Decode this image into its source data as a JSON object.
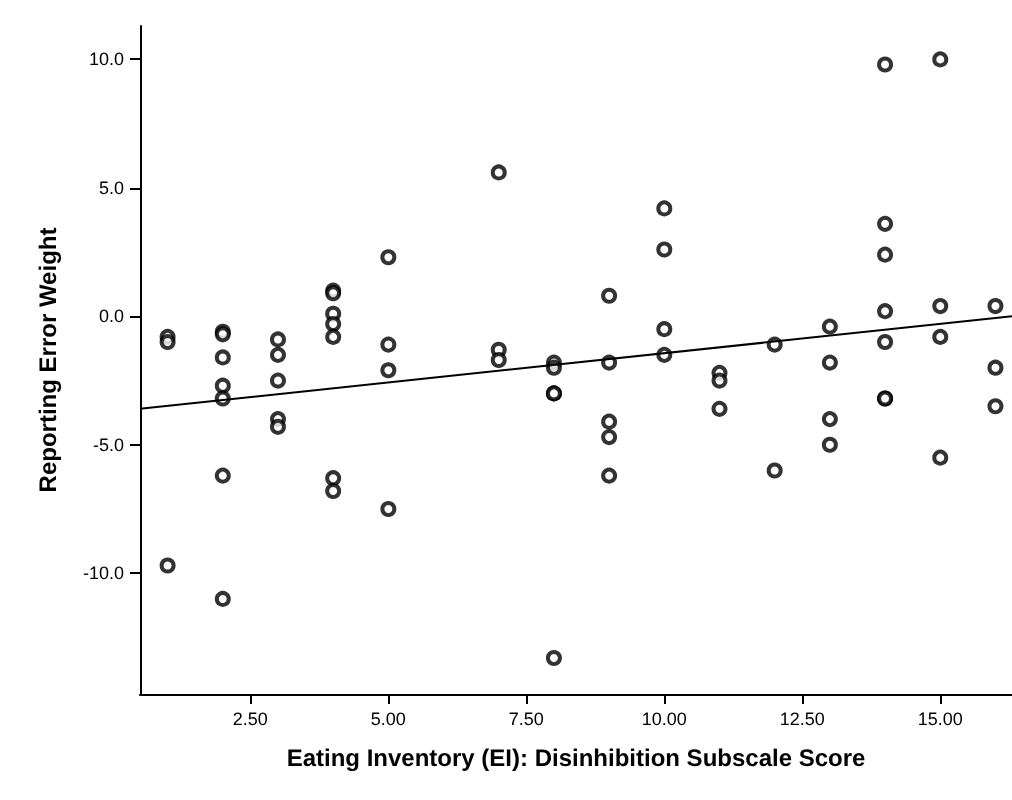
{
  "chart_data": {
    "type": "scatter",
    "xlabel": "Eating Inventory (EI): Disinhibition Subscale Score",
    "ylabel": "Reporting Error Weight",
    "xlim": [
      0.5,
      16.3
    ],
    "ylim": [
      -14.7,
      11.3
    ],
    "xticks": [
      {
        "value": 2.5,
        "label": "2.50"
      },
      {
        "value": 5,
        "label": "5.00"
      },
      {
        "value": 7.5,
        "label": "7.50"
      },
      {
        "value": 10,
        "label": "10.00"
      },
      {
        "value": 12.5,
        "label": "12.50"
      },
      {
        "value": 15,
        "label": "15.00"
      }
    ],
    "yticks": [
      {
        "value": -10,
        "label": "-10.0"
      },
      {
        "value": -5,
        "label": "-5.0"
      },
      {
        "value": 0,
        "label": "0.0"
      },
      {
        "value": 5,
        "label": "5.0"
      },
      {
        "value": 10,
        "label": "10.0"
      }
    ],
    "grid": false,
    "marker": "circle",
    "series": [
      {
        "color": "#000000",
        "x": [
          1,
          1,
          1,
          2,
          2,
          2,
          2,
          2,
          2,
          2,
          3,
          3,
          3,
          3,
          3,
          4,
          4,
          4,
          4,
          4,
          4,
          4,
          5,
          5,
          5,
          5,
          7,
          7,
          7,
          8,
          8,
          8,
          8,
          8,
          9,
          9,
          9,
          9,
          9,
          10,
          10,
          10,
          10,
          11,
          11,
          11,
          12,
          12,
          13,
          13,
          13,
          13,
          14,
          14,
          14,
          14,
          14,
          14,
          14,
          15,
          15,
          15,
          15,
          16,
          16,
          16
        ],
        "values": [
          -0.8,
          -1.0,
          -9.7,
          -0.6,
          -0.7,
          -1.6,
          -2.7,
          -3.2,
          -6.2,
          -11.0,
          -0.9,
          -1.5,
          -2.5,
          -4.0,
          -4.3,
          1.0,
          0.9,
          0.1,
          -0.3,
          -0.8,
          -6.3,
          -6.8,
          2.3,
          -1.1,
          -2.1,
          -7.5,
          5.6,
          -1.3,
          -1.7,
          -1.8,
          -2.0,
          -3.0,
          -3.0,
          -13.3,
          0.8,
          -1.8,
          -4.1,
          -4.7,
          -6.2,
          4.2,
          2.6,
          -0.5,
          -1.5,
          -2.2,
          -2.5,
          -3.6,
          -1.1,
          -6.0,
          -0.4,
          -1.8,
          -4.0,
          -5.0,
          9.8,
          3.6,
          2.4,
          0.2,
          -1.0,
          -3.2,
          -3.2,
          10.0,
          0.4,
          -0.8,
          -5.5,
          0.4,
          -2.0,
          -3.5
        ]
      },
      {
        "type": "line",
        "color": "#000000",
        "marker": "none",
        "line_style": "solid",
        "x": [
          0.5,
          16.3
        ],
        "values": [
          -3.6,
          0.0
        ]
      }
    ]
  }
}
